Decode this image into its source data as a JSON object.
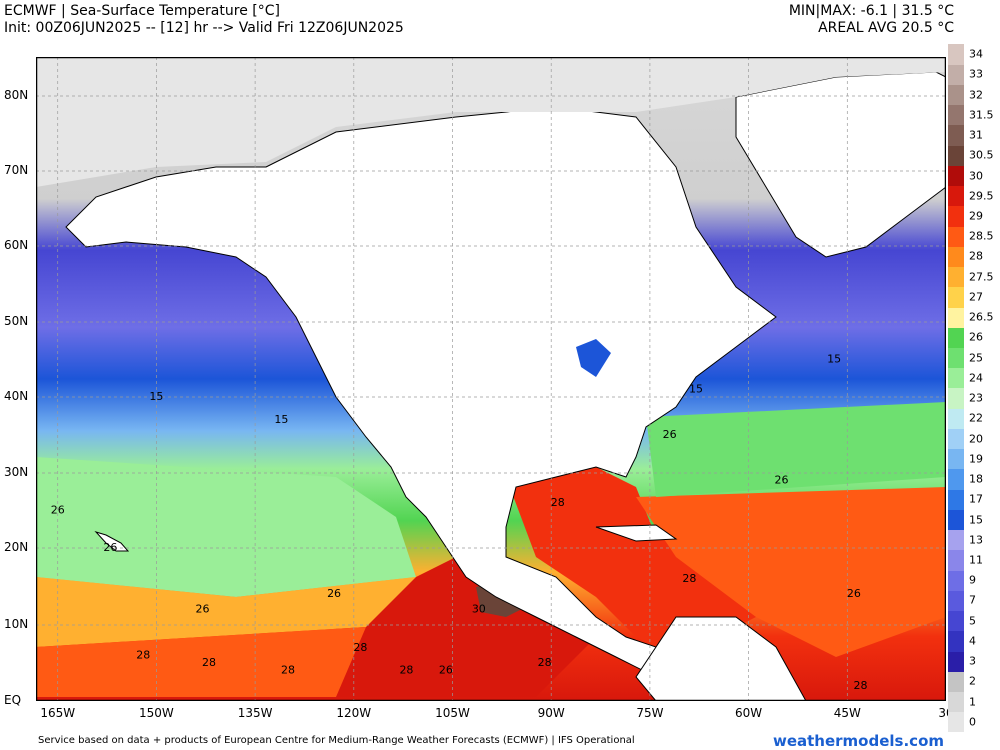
{
  "header": {
    "title": "ECMWF | Sea-Surface Temperature [°C]",
    "init": "Init: 00Z06JUN2025 -- [12] hr --> Valid Fri 12Z06JUN2025",
    "minmax": "MIN|MAX: -6.1 | 31.5 °C",
    "avg": "AREAL AVG 20.5 °C"
  },
  "axes": {
    "lat_labels": [
      {
        "text": "80N",
        "lat": 80
      },
      {
        "text": "70N",
        "lat": 70
      },
      {
        "text": "60N",
        "lat": 60
      },
      {
        "text": "50N",
        "lat": 50
      },
      {
        "text": "40N",
        "lat": 40
      },
      {
        "text": "30N",
        "lat": 30
      },
      {
        "text": "20N",
        "lat": 20
      },
      {
        "text": "10N",
        "lat": 10
      },
      {
        "text": "EQ",
        "lat": 0
      }
    ],
    "lon_labels": [
      {
        "text": "165W",
        "lon": -165
      },
      {
        "text": "150W",
        "lon": -150
      },
      {
        "text": "135W",
        "lon": -135
      },
      {
        "text": "120W",
        "lon": -120
      },
      {
        "text": "105W",
        "lon": -105
      },
      {
        "text": "90W",
        "lon": -90
      },
      {
        "text": "75W",
        "lon": -75
      },
      {
        "text": "60W",
        "lon": -60
      },
      {
        "text": "45W",
        "lon": -45
      },
      {
        "text": "30",
        "lon": -30
      }
    ]
  },
  "colorbar": [
    {
      "label": "0",
      "color": "#e6e6e6"
    },
    {
      "label": "1",
      "color": "#d8d8d8"
    },
    {
      "label": "2",
      "color": "#c4c4c4"
    },
    {
      "label": "3",
      "color": "#2a1ea8"
    },
    {
      "label": "4",
      "color": "#3333c0"
    },
    {
      "label": "5",
      "color": "#4646d2"
    },
    {
      "label": "7",
      "color": "#5a5ade"
    },
    {
      "label": "9",
      "color": "#6e6ee6"
    },
    {
      "label": "11",
      "color": "#8a86ea"
    },
    {
      "label": "13",
      "color": "#a6a2ee"
    },
    {
      "label": "15",
      "color": "#1c55d8"
    },
    {
      "label": "17",
      "color": "#2e78e6"
    },
    {
      "label": "18",
      "color": "#4f98ee"
    },
    {
      "label": "19",
      "color": "#78b6f2"
    },
    {
      "label": "20",
      "color": "#a0d0f6"
    },
    {
      "label": "22",
      "color": "#bfeaf2"
    },
    {
      "label": "23",
      "color": "#c8f4c4"
    },
    {
      "label": "24",
      "color": "#9aee98"
    },
    {
      "label": "25",
      "color": "#6ee070"
    },
    {
      "label": "26",
      "color": "#52d452"
    },
    {
      "label": "26.5",
      "color": "#fff3a0"
    },
    {
      "label": "27",
      "color": "#ffd24a"
    },
    {
      "label": "27.5",
      "color": "#ffb030"
    },
    {
      "label": "28",
      "color": "#ff8a1c"
    },
    {
      "label": "28.5",
      "color": "#ff5a14"
    },
    {
      "label": "29",
      "color": "#f2300e"
    },
    {
      "label": "29.5",
      "color": "#d8180c"
    },
    {
      "label": "30",
      "color": "#b00c0a"
    },
    {
      "label": "30.5",
      "color": "#6a4438"
    },
    {
      "label": "31",
      "color": "#7e5c52"
    },
    {
      "label": "31.5",
      "color": "#94766e"
    },
    {
      "label": "32",
      "color": "#aa928a"
    },
    {
      "label": "33",
      "color": "#c2aea8"
    },
    {
      "label": "34",
      "color": "#d8c6c0"
    }
  ],
  "contour_labels": [
    {
      "text": "15",
      "lat": 40,
      "lon": -150
    },
    {
      "text": "15",
      "lat": 37,
      "lon": -131
    },
    {
      "text": "15",
      "lat": 41,
      "lon": -68
    },
    {
      "text": "15",
      "lat": 45,
      "lon": -47
    },
    {
      "text": "26",
      "lat": 35,
      "lon": -72
    },
    {
      "text": "26",
      "lat": 29,
      "lon": -55
    },
    {
      "text": "26",
      "lat": 25,
      "lon": -165
    },
    {
      "text": "26",
      "lat": 20,
      "lon": -157
    },
    {
      "text": "26",
      "lat": 12,
      "lon": -143
    },
    {
      "text": "26",
      "lat": 14,
      "lon": -123
    },
    {
      "text": "26",
      "lat": 4,
      "lon": -106
    },
    {
      "text": "26",
      "lat": 14,
      "lon": -44
    },
    {
      "text": "28",
      "lat": 26,
      "lon": -89
    },
    {
      "text": "28",
      "lat": 16,
      "lon": -69
    },
    {
      "text": "28",
      "lat": 6,
      "lon": -152
    },
    {
      "text": "28",
      "lat": 5,
      "lon": -142
    },
    {
      "text": "28",
      "lat": 4,
      "lon": -130
    },
    {
      "text": "28",
      "lat": 7,
      "lon": -119
    },
    {
      "text": "28",
      "lat": 4,
      "lon": -112
    },
    {
      "text": "28",
      "lat": 5,
      "lon": -91
    },
    {
      "text": "28",
      "lat": 2,
      "lon": -43
    },
    {
      "text": "30",
      "lat": 12,
      "lon": -101
    }
  ],
  "footer": "Service based on data + products of European Centre for Medium-Range Weather Forecasts (ECMWF) | IFS Operational",
  "brand": "weathermodels.com"
}
